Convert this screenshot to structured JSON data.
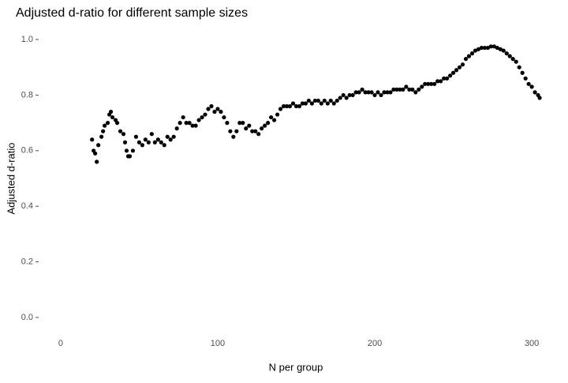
{
  "chart_data": {
    "type": "scatter",
    "title": "Adjusted d-ratio for different sample sizes",
    "x_label": "N per group",
    "y_label": "Adjusted d-ratio",
    "color": "#000000",
    "xlim": [
      -13.5,
      313
    ],
    "ylim": [
      -0.05,
      1.06
    ],
    "xticks": [
      0,
      100,
      200,
      300
    ],
    "yticks": [
      {
        "value": 0,
        "label": "0.0"
      },
      {
        "value": 0.2,
        "label": "0.2"
      },
      {
        "value": 0.4,
        "label": "0.4"
      },
      {
        "value": 0.6,
        "label": "0.6"
      },
      {
        "value": 0.8,
        "label": "0.8"
      },
      {
        "value": 1,
        "label": "1.0"
      }
    ],
    "grid": false,
    "x": [
      20,
      21,
      22,
      23,
      24,
      26,
      27,
      28,
      30,
      31,
      32,
      33,
      35,
      36,
      38,
      40,
      41,
      42,
      43,
      44,
      46,
      48,
      50,
      52,
      54,
      56,
      58,
      60,
      62,
      64,
      66,
      68,
      70,
      72,
      74,
      76,
      78,
      80,
      82,
      84,
      86,
      88,
      90,
      92,
      94,
      96,
      98,
      100,
      102,
      104,
      106,
      108,
      110,
      112,
      114,
      116,
      118,
      120,
      122,
      124,
      126,
      128,
      130,
      132,
      134,
      136,
      138,
      140,
      142,
      144,
      146,
      148,
      150,
      152,
      154,
      156,
      158,
      160,
      162,
      164,
      166,
      168,
      170,
      172,
      174,
      176,
      178,
      180,
      182,
      184,
      186,
      188,
      190,
      192,
      194,
      196,
      198,
      200,
      202,
      204,
      206,
      208,
      210,
      212,
      214,
      216,
      218,
      220,
      222,
      224,
      226,
      228,
      230,
      232,
      234,
      236,
      238,
      240,
      242,
      244,
      246,
      248,
      250,
      252,
      254,
      256,
      258,
      260,
      262,
      264,
      266,
      268,
      270,
      272,
      274,
      276,
      278,
      280,
      282,
      284,
      286,
      288,
      290,
      292,
      294,
      296,
      298,
      300,
      302,
      304,
      305
    ],
    "values": [
      0.64,
      0.6,
      0.59,
      0.56,
      0.62,
      0.65,
      0.67,
      0.69,
      0.7,
      0.73,
      0.74,
      0.72,
      0.71,
      0.7,
      0.67,
      0.66,
      0.63,
      0.6,
      0.58,
      0.58,
      0.6,
      0.65,
      0.63,
      0.62,
      0.64,
      0.63,
      0.66,
      0.63,
      0.64,
      0.63,
      0.62,
      0.65,
      0.64,
      0.65,
      0.68,
      0.7,
      0.72,
      0.7,
      0.7,
      0.69,
      0.69,
      0.71,
      0.72,
      0.73,
      0.75,
      0.76,
      0.74,
      0.75,
      0.74,
      0.72,
      0.7,
      0.67,
      0.65,
      0.67,
      0.7,
      0.7,
      0.68,
      0.69,
      0.67,
      0.67,
      0.66,
      0.68,
      0.69,
      0.7,
      0.72,
      0.71,
      0.73,
      0.75,
      0.76,
      0.76,
      0.76,
      0.77,
      0.76,
      0.76,
      0.77,
      0.77,
      0.78,
      0.77,
      0.78,
      0.78,
      0.77,
      0.78,
      0.77,
      0.78,
      0.77,
      0.78,
      0.79,
      0.8,
      0.79,
      0.8,
      0.8,
      0.81,
      0.81,
      0.82,
      0.81,
      0.81,
      0.81,
      0.8,
      0.81,
      0.8,
      0.81,
      0.81,
      0.81,
      0.82,
      0.82,
      0.82,
      0.82,
      0.83,
      0.82,
      0.82,
      0.81,
      0.82,
      0.83,
      0.84,
      0.84,
      0.84,
      0.84,
      0.85,
      0.85,
      0.86,
      0.86,
      0.87,
      0.88,
      0.89,
      0.9,
      0.91,
      0.93,
      0.94,
      0.95,
      0.96,
      0.965,
      0.97,
      0.97,
      0.97,
      0.975,
      0.975,
      0.97,
      0.965,
      0.96,
      0.95,
      0.94,
      0.93,
      0.92,
      0.9,
      0.88,
      0.86,
      0.84,
      0.83,
      0.81,
      0.8,
      0.79
    ]
  }
}
